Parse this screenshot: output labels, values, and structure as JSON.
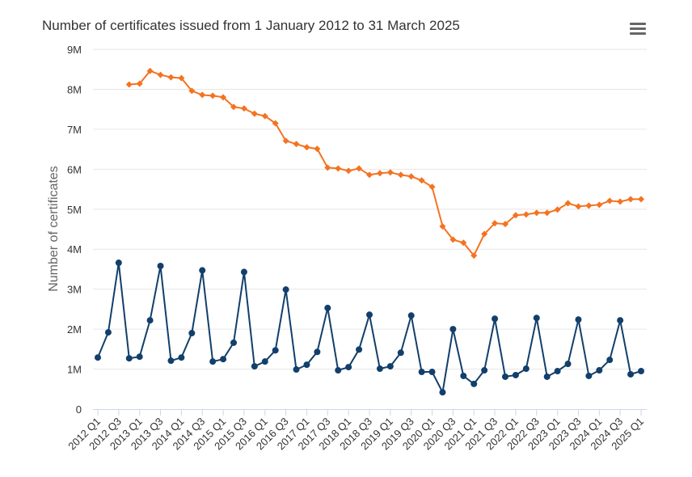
{
  "chart_data": {
    "type": "line",
    "title": "Number of certificates issued from 1 January 2012 to 31 March 2025",
    "ylabel": "Number of certificates",
    "xlabel": "",
    "ylim": [
      0,
      9000000
    ],
    "y_ticks": [
      "0",
      "1M",
      "2M",
      "3M",
      "4M",
      "5M",
      "6M",
      "7M",
      "8M",
      "9M"
    ],
    "grid": true,
    "legend": "none",
    "categories": [
      "2012 Q1",
      "2012 Q2",
      "2012 Q3",
      "2012 Q4",
      "2013 Q1",
      "2013 Q2",
      "2013 Q3",
      "2013 Q4",
      "2014 Q1",
      "2014 Q2",
      "2014 Q3",
      "2014 Q4",
      "2015 Q1",
      "2015 Q2",
      "2015 Q3",
      "2015 Q4",
      "2016 Q1",
      "2016 Q2",
      "2016 Q3",
      "2016 Q4",
      "2017 Q1",
      "2017 Q2",
      "2017 Q3",
      "2017 Q4",
      "2018 Q1",
      "2018 Q2",
      "2018 Q3",
      "2018 Q4",
      "2019 Q1",
      "2019 Q2",
      "2019 Q3",
      "2019 Q4",
      "2020 Q1",
      "2020 Q2",
      "2020 Q3",
      "2020 Q4",
      "2021 Q1",
      "2021 Q2",
      "2021 Q3",
      "2021 Q4",
      "2022 Q1",
      "2022 Q2",
      "2022 Q3",
      "2022 Q4",
      "2023 Q1",
      "2023 Q2",
      "2023 Q3",
      "2023 Q4",
      "2024 Q1",
      "2024 Q2",
      "2024 Q3",
      "2024 Q4",
      "2025 Q1"
    ],
    "series": [
      {
        "color": "#f47321",
        "marker": "diamond",
        "values": [
          null,
          null,
          null,
          8120000,
          8140000,
          8460000,
          8360000,
          8300000,
          8280000,
          7960000,
          7860000,
          7840000,
          7800000,
          7560000,
          7520000,
          7390000,
          7330000,
          7150000,
          6710000,
          6630000,
          6550000,
          6510000,
          6040000,
          6020000,
          5960000,
          6020000,
          5860000,
          5900000,
          5920000,
          5860000,
          5820000,
          5720000,
          5560000,
          4570000,
          4240000,
          4160000,
          3840000,
          4380000,
          4650000,
          4630000,
          4850000,
          4870000,
          4910000,
          4910000,
          4990000,
          5150000,
          5070000,
          5090000,
          5110000,
          5210000,
          5190000,
          5250000,
          5250000
        ]
      },
      {
        "color": "#123f6b",
        "marker": "circle",
        "values": [
          1290000,
          1920000,
          3660000,
          1270000,
          1310000,
          2220000,
          3580000,
          1210000,
          1290000,
          1900000,
          3470000,
          1190000,
          1250000,
          1660000,
          3430000,
          1070000,
          1190000,
          1470000,
          2990000,
          990000,
          1110000,
          1430000,
          2530000,
          970000,
          1050000,
          1490000,
          2360000,
          1010000,
          1070000,
          1410000,
          2340000,
          930000,
          930000,
          420000,
          2000000,
          830000,
          630000,
          970000,
          2260000,
          810000,
          850000,
          1010000,
          2280000,
          810000,
          950000,
          1130000,
          2240000,
          830000,
          970000,
          1230000,
          2220000,
          870000,
          950000
        ]
      }
    ]
  },
  "menu_icon": "hamburger-menu-icon"
}
